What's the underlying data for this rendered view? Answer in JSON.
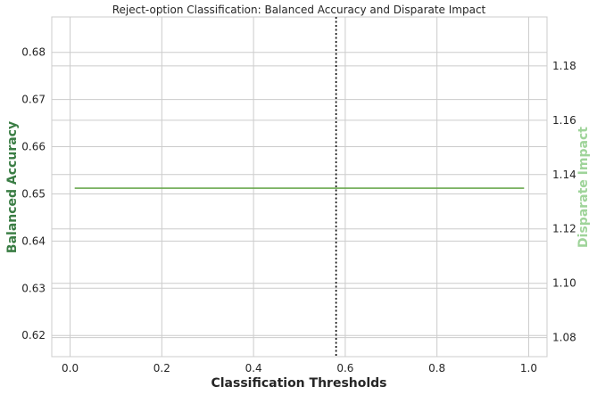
{
  "chart_data": {
    "type": "line",
    "title": "Reject-option Classification: Balanced Accuracy and Disparate Impact",
    "xlabel": "Classification Thresholds",
    "ylabel_left": "Balanced Accuracy",
    "ylabel_right": "Disparate Impact",
    "xlim": [
      -0.04,
      1.04
    ],
    "ylim_left": [
      0.6155,
      0.6875
    ],
    "ylim_right": [
      1.073,
      1.198
    ],
    "x_ticks": [
      {
        "value": 0.0,
        "label": "0.0"
      },
      {
        "value": 0.2,
        "label": "0.2"
      },
      {
        "value": 0.4,
        "label": "0.4"
      },
      {
        "value": 0.6,
        "label": "0.6"
      },
      {
        "value": 0.8,
        "label": "0.8"
      },
      {
        "value": 1.0,
        "label": "1.0"
      }
    ],
    "y_ticks_left": [
      {
        "value": 0.62,
        "label": "0.62"
      },
      {
        "value": 0.63,
        "label": "0.63"
      },
      {
        "value": 0.64,
        "label": "0.64"
      },
      {
        "value": 0.65,
        "label": "0.65"
      },
      {
        "value": 0.66,
        "label": "0.66"
      },
      {
        "value": 0.67,
        "label": "0.67"
      },
      {
        "value": 0.68,
        "label": "0.68"
      }
    ],
    "y_ticks_right": [
      {
        "value": 1.08,
        "label": "1.08"
      },
      {
        "value": 1.1,
        "label": "1.10"
      },
      {
        "value": 1.12,
        "label": "1.12"
      },
      {
        "value": 1.14,
        "label": "1.14"
      },
      {
        "value": 1.16,
        "label": "1.16"
      },
      {
        "value": 1.18,
        "label": "1.18"
      }
    ],
    "grid": true,
    "series": [
      {
        "axis": "left",
        "color": "#6aa84f",
        "x": [
          0.01,
          0.99
        ],
        "values": [
          0.6512,
          0.6512
        ]
      }
    ],
    "vline": {
      "x": 0.58,
      "style": "dotted",
      "color": "#000000"
    },
    "colors": {
      "left_axis_label": "#3a7d44",
      "right_axis_label": "#9fd49a",
      "grid": "#cccccc",
      "spine": "#cccccc"
    }
  }
}
